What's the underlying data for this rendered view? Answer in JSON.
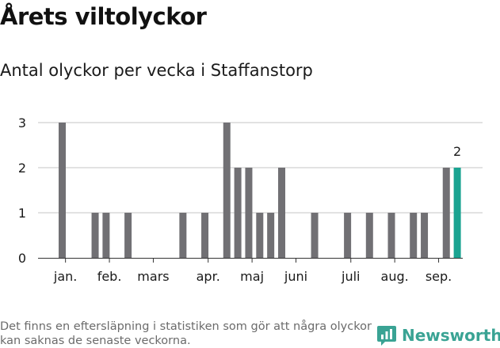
{
  "title": "Årets viltolyckor",
  "subtitle": "Antal olyckor per vecka i Staffanstorp",
  "footnote": "Det finns en eftersläpning i statistiken som gör att några olyckor kan saknas de senaste veckorna.",
  "brand": "Newsworthy",
  "colors": {
    "bar": "#717074",
    "highlight": "#1aa391",
    "grid": "#d9d9d9",
    "axis": "#333333"
  },
  "chart_data": {
    "type": "bar",
    "weeks": [
      1,
      2,
      3,
      4,
      5,
      6,
      7,
      8,
      9,
      10,
      11,
      12,
      13,
      14,
      15,
      16,
      17,
      18,
      19,
      20,
      21,
      22,
      23,
      24,
      25,
      26,
      27,
      28,
      29,
      30,
      31,
      32,
      33,
      34,
      35,
      36,
      37,
      38
    ],
    "values": [
      3,
      0,
      0,
      1,
      1,
      0,
      1,
      0,
      0,
      0,
      0,
      1,
      0,
      1,
      0,
      3,
      2,
      2,
      1,
      1,
      2,
      0,
      0,
      1,
      0,
      0,
      1,
      0,
      1,
      0,
      1,
      0,
      1,
      1,
      0,
      2,
      2,
      0
    ],
    "highlight_week": 37,
    "highlight_label": "2",
    "ylim": [
      0,
      3
    ],
    "yticks": [
      0,
      1,
      2,
      3
    ],
    "xticks": [
      {
        "label": "jan.",
        "week": 1.3
      },
      {
        "label": "feb.",
        "week": 5.3
      },
      {
        "label": "mars",
        "week": 9.3
      },
      {
        "label": "apr.",
        "week": 14.3
      },
      {
        "label": "maj",
        "week": 18.3
      },
      {
        "label": "juni",
        "week": 22.3
      },
      {
        "label": "juli",
        "week": 27.3
      },
      {
        "label": "aug.",
        "week": 31.3
      },
      {
        "label": "sep.",
        "week": 35.3
      }
    ],
    "grid": true,
    "legend": "none"
  }
}
